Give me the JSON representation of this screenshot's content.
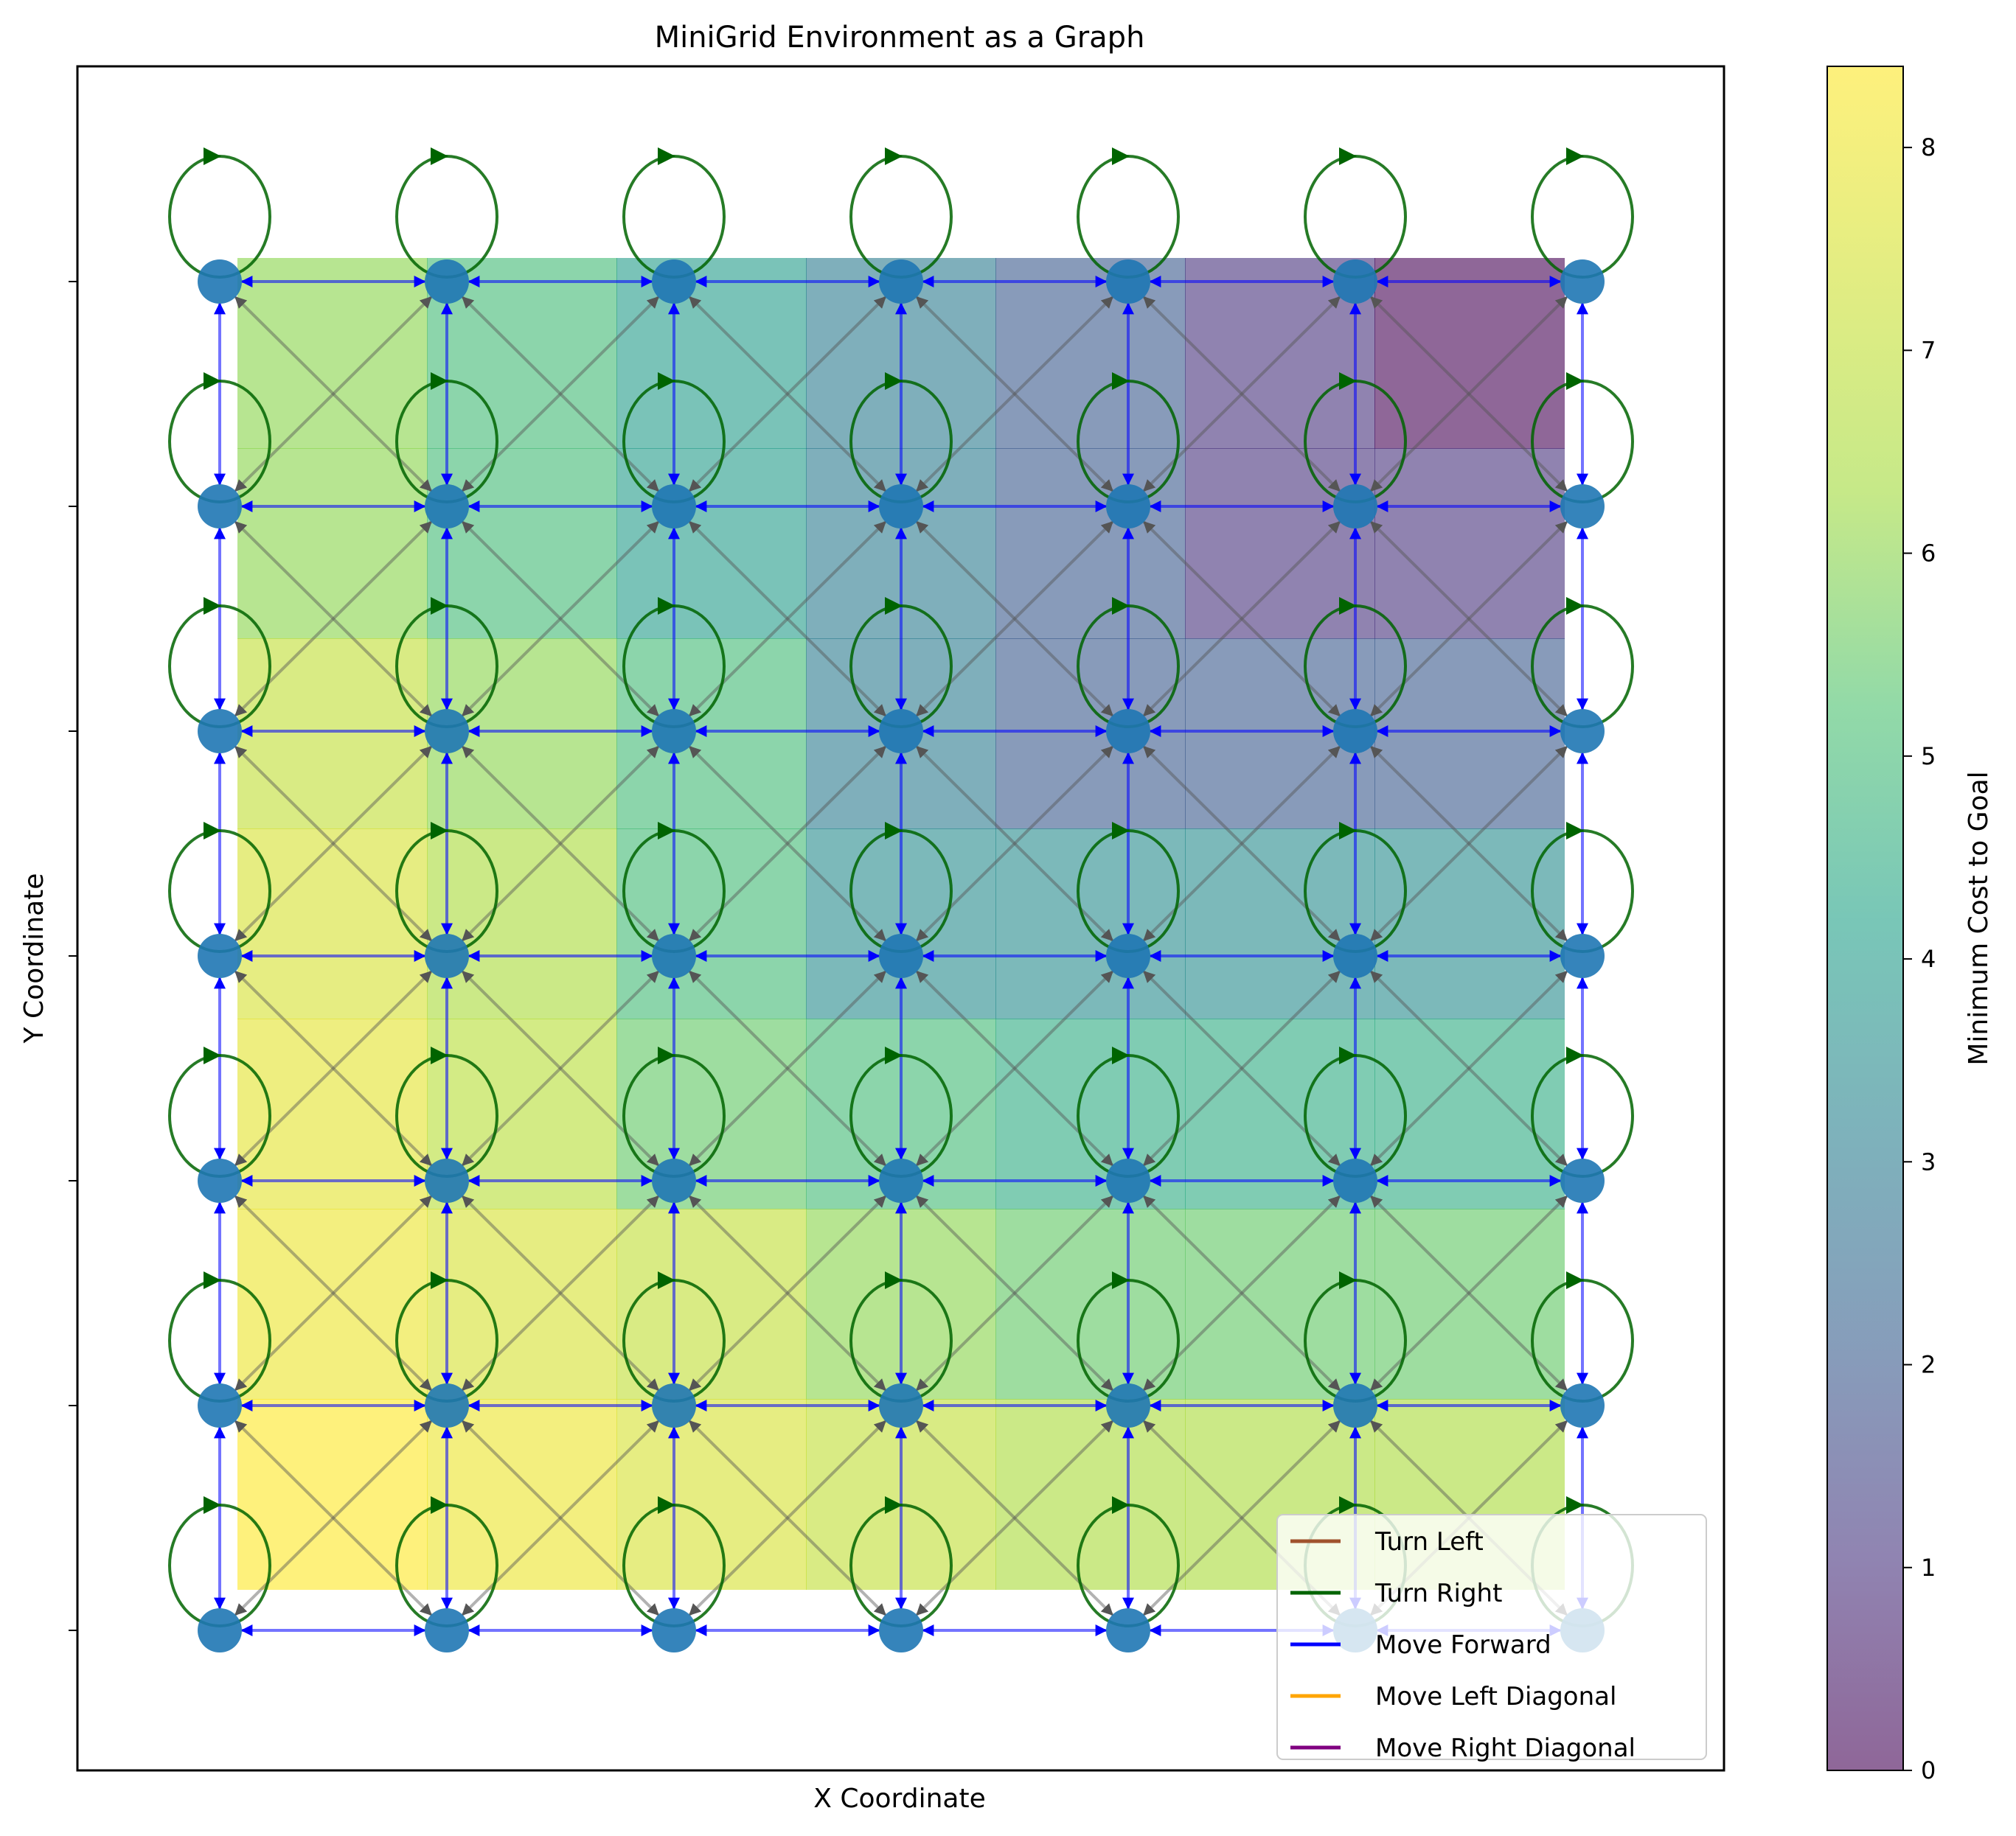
{
  "chart_data": {
    "type": "heatmap",
    "title": "MiniGrid Environment as a Graph",
    "xlabel": "X Coordinate",
    "ylabel": "Y Coordinate",
    "grid": false,
    "legend_position": "lower-right",
    "legend": [
      {
        "label": "Turn Left",
        "color": "#a0522d"
      },
      {
        "label": "Turn Right",
        "color": "#006400"
      },
      {
        "label": "Move Forward",
        "color": "#0000ff"
      },
      {
        "label": "Move Left Diagonal",
        "color": "#ffa500"
      },
      {
        "label": "Move Right Diagonal",
        "color": "#800080"
      }
    ],
    "colorbar": {
      "label": "Minimum Cost to Goal",
      "colormap": "viridis",
      "range": [
        0,
        8.4
      ],
      "ticks": [
        "0",
        "1",
        "2",
        "3",
        "4",
        "5",
        "6",
        "7",
        "8"
      ]
    },
    "grid_size": 7,
    "node_color": "#1f77b4",
    "cost_grid": [
      [
        6.0,
        5.0,
        4.0,
        3.0,
        2.0,
        1.0,
        0.0
      ],
      [
        6.0,
        5.0,
        4.0,
        3.0,
        2.0,
        1.0,
        1.0
      ],
      [
        7.0,
        6.0,
        5.0,
        3.0,
        2.0,
        2.0,
        2.0
      ],
      [
        7.5,
        6.5,
        5.0,
        3.5,
        3.5,
        3.5,
        3.5
      ],
      [
        7.8,
        6.8,
        5.5,
        5.0,
        4.5,
        4.5,
        4.5
      ],
      [
        8.0,
        7.5,
        7.0,
        6.0,
        5.5,
        5.5,
        5.5
      ],
      [
        8.4,
        8.0,
        7.5,
        7.0,
        6.5,
        6.5,
        6.5
      ]
    ]
  }
}
